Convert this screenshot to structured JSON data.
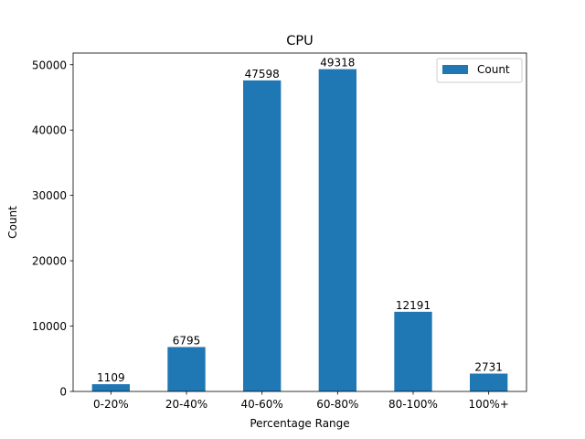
{
  "chart_data": {
    "type": "bar",
    "title": "CPU",
    "xlabel": "Percentage Range",
    "ylabel": "Count",
    "categories": [
      "0-20%",
      "20-40%",
      "40-60%",
      "60-80%",
      "80-100%",
      "100%+"
    ],
    "series": [
      {
        "name": "Count",
        "values": [
          1109,
          6795,
          47598,
          49318,
          12191,
          2731
        ],
        "color": "#1f77b4"
      }
    ],
    "data_labels": [
      "1109",
      "6795",
      "47598",
      "49318",
      "12191",
      "2731"
    ],
    "ylim": [
      0,
      51784
    ],
    "yticks": [
      0,
      10000,
      20000,
      30000,
      40000,
      50000
    ],
    "ytick_labels": [
      "0",
      "10000",
      "20000",
      "30000",
      "40000",
      "50000"
    ],
    "grid": false,
    "legend_position": "top-right"
  }
}
